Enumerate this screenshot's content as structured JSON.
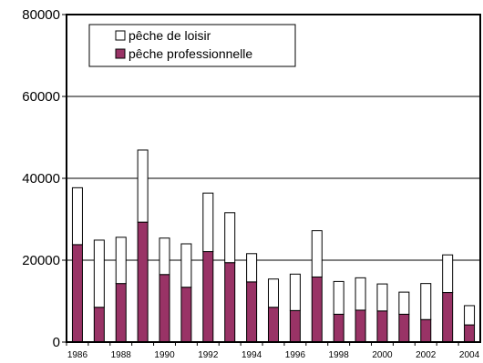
{
  "chart_data": {
    "type": "bar",
    "stacked": true,
    "title": "",
    "xlabel": "",
    "ylabel": "",
    "ylim": [
      0,
      80000
    ],
    "yticks": [
      "0",
      "20000",
      "40000",
      "60000",
      "80000"
    ],
    "grid": true,
    "legend": "top-left",
    "categories": [
      "1986",
      "1987",
      "1988",
      "1989",
      "1990",
      "1991",
      "1992",
      "1993",
      "1994",
      "1995",
      "1996",
      "1997",
      "1998",
      "1999",
      "2000",
      "2001",
      "2002",
      "2003",
      "2004"
    ],
    "xtick_labels": [
      "1986",
      "",
      "1988",
      "",
      "1990",
      "",
      "1992",
      "",
      "1994",
      "",
      "1996",
      "",
      "1998",
      "",
      "2000",
      "",
      "2002",
      "",
      "2004"
    ],
    "series": [
      {
        "name": "pêche professionnelle",
        "color": "#993366",
        "values": [
          23800,
          8500,
          14300,
          29300,
          16500,
          13400,
          22100,
          19400,
          14700,
          8500,
          7700,
          15900,
          6800,
          7800,
          7600,
          6800,
          5500,
          12100,
          4200
        ]
      },
      {
        "name": "pêche de loisir",
        "color": "#ffffff",
        "values": [
          13900,
          16400,
          11300,
          17600,
          8900,
          10600,
          14300,
          12200,
          6900,
          6900,
          8900,
          11300,
          8000,
          7900,
          6600,
          5400,
          8800,
          9200,
          4700
        ]
      }
    ]
  }
}
